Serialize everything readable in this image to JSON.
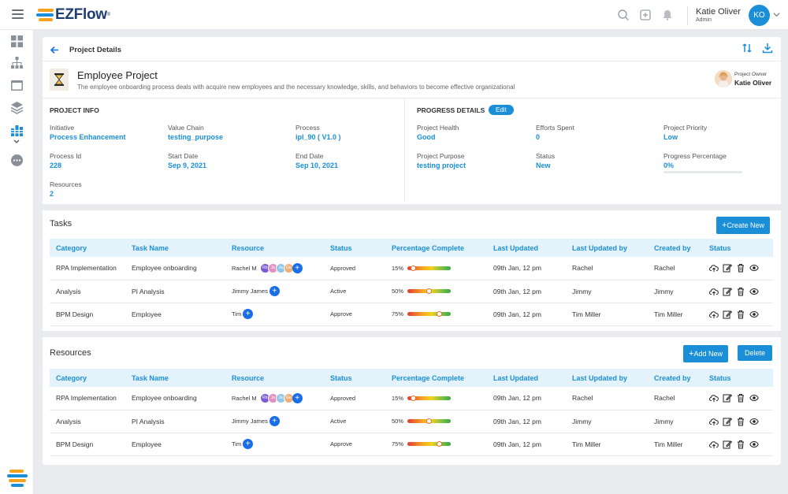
{
  "app": {
    "logo_text": "EZFlow",
    "logo_reg": "®"
  },
  "user": {
    "name": "Katie Oliver",
    "role": "Admin",
    "initials": "KO"
  },
  "page": {
    "title": "Project Details"
  },
  "project": {
    "name": "Employee Project",
    "description": "The employee onboarding process deals with acquire new employees and the necessary knowledge, skills, and behaviors to become effective organizational",
    "owner_label": "Project Owner",
    "owner_name": "Katie Oliver"
  },
  "project_info": {
    "title": "PROJECT INFO",
    "initiative_label": "Initiative",
    "initiative": "Process Enhancement",
    "value_chain_label": "Value Chain",
    "value_chain": "testing_purpose",
    "process_label": "Process",
    "process": "ipl_90 ( V1.0 )",
    "process_id_label": "Process Id",
    "process_id": "228",
    "start_date_label": "Start Date",
    "start_date": "Sep 9, 2021",
    "end_date_label": "End Date",
    "end_date": "Sep 10, 2021",
    "resources_label": "Resources",
    "resources": "2"
  },
  "progress_details": {
    "title": "PROGRESS DETAILS",
    "edit_label": "Edit",
    "health_label": "Project Health",
    "health": "Good",
    "efforts_label": "Efforts Spent",
    "efforts": "0",
    "priority_label": "Project Priority",
    "priority": "Low",
    "purpose_label": "Project Purpose",
    "purpose": "testing project",
    "status_label": "Status",
    "status": "New",
    "percentage_label": "Progress Percentage",
    "percentage": "0%",
    "percentage_value": 0
  },
  "tasks": {
    "title": "Tasks",
    "create_label": "Create New",
    "columns": [
      "Category",
      "Task Name",
      "Resource",
      "Status",
      "Percentage Complete",
      "Last Updated",
      "Last Updated by",
      "Created by",
      "Status"
    ],
    "rows": [
      {
        "category": "RPA Implementation",
        "task": "Employee onboarding",
        "resource": "Rachel M",
        "chips": [
          "Rb",
          "Ja",
          "Ja",
          "Ge"
        ],
        "status": "Approved",
        "pct": "15%",
        "pct_value": 15,
        "updated": "09th Jan, 12 pm",
        "updated_by": "Rachel",
        "created_by": "Rachel"
      },
      {
        "category": "Analysis",
        "task": "PI Analysis",
        "resource": "Jimmy James",
        "chips": [],
        "status": "Active",
        "pct": "50%",
        "pct_value": 50,
        "updated": "09th Jan, 12 pm",
        "updated_by": "Jimmy",
        "created_by": "Jimmy"
      },
      {
        "category": "BPM Design",
        "task": "Employee",
        "resource": "Tim",
        "chips": [],
        "status": "Approve",
        "pct": "75%",
        "pct_value": 75,
        "updated": "09th Jan, 12 pm",
        "updated_by": "Tim Miller",
        "created_by": "Tim Miller"
      }
    ]
  },
  "resources_table": {
    "title": "Resources",
    "add_label": "Add New",
    "delete_label": "Delete",
    "columns": [
      "Category",
      "Task Name",
      "Resource",
      "Status",
      "Percentage Complete",
      "Last Updated",
      "Last Updated by",
      "Created by",
      "Status"
    ],
    "rows": [
      {
        "category": "RPA Implementation",
        "task": "Employee onboarding",
        "resource": "Rachel M",
        "chips": [
          "Rb",
          "Ja",
          "Ja",
          "Ge"
        ],
        "status": "Approved",
        "pct": "15%",
        "pct_value": 15,
        "updated": "09th Jan, 12 pm",
        "updated_by": "Rachel",
        "created_by": "Rachel"
      },
      {
        "category": "Analysis",
        "task": "PI Analysis",
        "resource": "Jimmy James",
        "chips": [],
        "status": "Active",
        "pct": "50%",
        "pct_value": 50,
        "updated": "09th Jan, 12 pm",
        "updated_by": "Jimmy",
        "created_by": "Jimmy"
      },
      {
        "category": "BPM Design",
        "task": "Employee",
        "resource": "Tim",
        "chips": [],
        "status": "Approve",
        "pct": "75%",
        "pct_value": 75,
        "updated": "09th Jan, 12 pm",
        "updated_by": "Tim Miller",
        "created_by": "Tim Miller"
      }
    ]
  },
  "colors": {
    "accent": "#1a8fd8",
    "brand": "#1f3d73",
    "header_bg": "#e4f3fb",
    "chip_colors": [
      "#7b5cd6",
      "#e58fc0",
      "#8fc7e8",
      "#f0b07a"
    ]
  }
}
